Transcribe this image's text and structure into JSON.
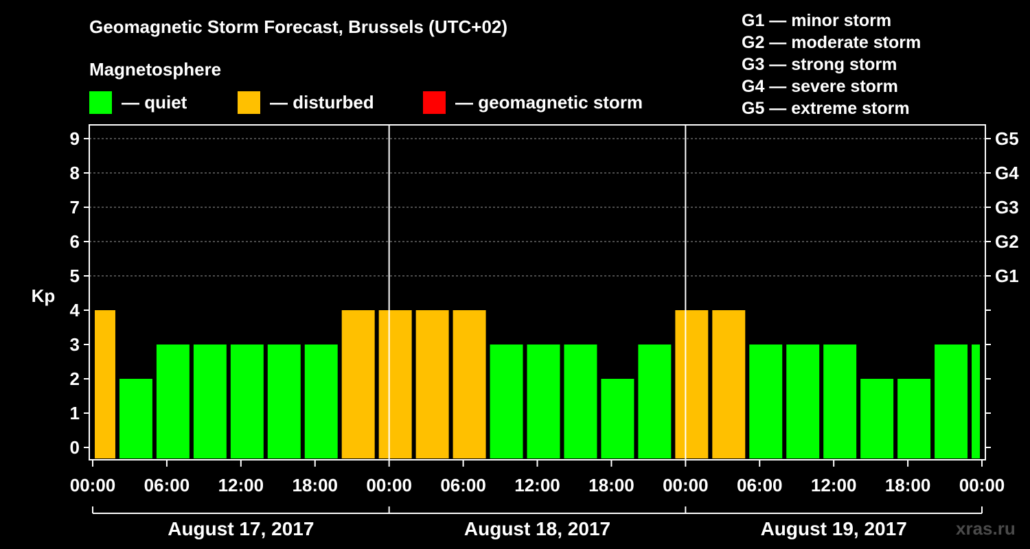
{
  "title": "Geomagnetic Storm Forecast, Brussels (UTC+02)",
  "subtitle": "Magnetosphere",
  "legend": [
    {
      "label": "— quiet",
      "color": "#00ff00",
      "swatch": "green-swatch"
    },
    {
      "label": "— disturbed",
      "color": "#ffc000",
      "swatch": "orange-swatch"
    },
    {
      "label": "— geomagnetic storm",
      "color": "#ff0000",
      "swatch": "red-swatch"
    }
  ],
  "g_scale": [
    "G1 — minor storm",
    "G2 — moderate storm",
    "G3 — strong storm",
    "G4 — severe storm",
    "G5 — extreme storm"
  ],
  "watermark": "xras.ru",
  "colors": {
    "quiet": "#00ff00",
    "disturbed": "#ffc000",
    "storm": "#ff0000"
  },
  "chart_data": {
    "type": "bar",
    "ylabel": "Kp",
    "ylim": [
      0,
      9
    ],
    "yticks": [
      "0",
      "1",
      "2",
      "3",
      "4",
      "5",
      "6",
      "7",
      "8",
      "9"
    ],
    "right_ticks": [
      {
        "value": 5,
        "label": "G1"
      },
      {
        "value": 6,
        "label": "G2"
      },
      {
        "value": 7,
        "label": "G3"
      },
      {
        "value": 8,
        "label": "G4"
      },
      {
        "value": 9,
        "label": "G5"
      }
    ],
    "xlim_hours": [
      0,
      72
    ],
    "xticks": [
      {
        "hour": 0,
        "label": "00:00"
      },
      {
        "hour": 6,
        "label": "06:00"
      },
      {
        "hour": 12,
        "label": "12:00"
      },
      {
        "hour": 18,
        "label": "18:00"
      },
      {
        "hour": 24,
        "label": "00:00"
      },
      {
        "hour": 30,
        "label": "06:00"
      },
      {
        "hour": 36,
        "label": "12:00"
      },
      {
        "hour": 42,
        "label": "18:00"
      },
      {
        "hour": 48,
        "label": "00:00"
      },
      {
        "hour": 54,
        "label": "06:00"
      },
      {
        "hour": 60,
        "label": "12:00"
      },
      {
        "hour": 66,
        "label": "18:00"
      },
      {
        "hour": 72,
        "label": "00:00"
      }
    ],
    "days": [
      {
        "label": "August 17, 2017",
        "start": 0,
        "end": 24
      },
      {
        "label": "August 18, 2017",
        "start": 24,
        "end": 48
      },
      {
        "label": "August 19, 2017",
        "start": 48,
        "end": 72
      }
    ],
    "grid": true,
    "bars": [
      {
        "start": 0,
        "end": 2,
        "kp": 4,
        "level": "disturbed"
      },
      {
        "start": 2,
        "end": 5,
        "kp": 2,
        "level": "quiet"
      },
      {
        "start": 5,
        "end": 8,
        "kp": 3,
        "level": "quiet"
      },
      {
        "start": 8,
        "end": 11,
        "kp": 3,
        "level": "quiet"
      },
      {
        "start": 11,
        "end": 14,
        "kp": 3,
        "level": "quiet"
      },
      {
        "start": 14,
        "end": 17,
        "kp": 3,
        "level": "quiet"
      },
      {
        "start": 17,
        "end": 20,
        "kp": 3,
        "level": "quiet"
      },
      {
        "start": 20,
        "end": 23,
        "kp": 4,
        "level": "disturbed"
      },
      {
        "start": 23,
        "end": 26,
        "kp": 4,
        "level": "disturbed"
      },
      {
        "start": 26,
        "end": 29,
        "kp": 4,
        "level": "disturbed"
      },
      {
        "start": 29,
        "end": 32,
        "kp": 4,
        "level": "disturbed"
      },
      {
        "start": 32,
        "end": 35,
        "kp": 3,
        "level": "quiet"
      },
      {
        "start": 35,
        "end": 38,
        "kp": 3,
        "level": "quiet"
      },
      {
        "start": 38,
        "end": 41,
        "kp": 3,
        "level": "quiet"
      },
      {
        "start": 41,
        "end": 44,
        "kp": 2,
        "level": "quiet"
      },
      {
        "start": 44,
        "end": 47,
        "kp": 3,
        "level": "quiet"
      },
      {
        "start": 47,
        "end": 50,
        "kp": 4,
        "level": "disturbed"
      },
      {
        "start": 50,
        "end": 53,
        "kp": 4,
        "level": "disturbed"
      },
      {
        "start": 53,
        "end": 56,
        "kp": 3,
        "level": "quiet"
      },
      {
        "start": 56,
        "end": 59,
        "kp": 3,
        "level": "quiet"
      },
      {
        "start": 59,
        "end": 62,
        "kp": 3,
        "level": "quiet"
      },
      {
        "start": 62,
        "end": 65,
        "kp": 2,
        "level": "quiet"
      },
      {
        "start": 65,
        "end": 68,
        "kp": 2,
        "level": "quiet"
      },
      {
        "start": 68,
        "end": 71,
        "kp": 3,
        "level": "quiet"
      },
      {
        "start": 71,
        "end": 72,
        "kp": 3,
        "level": "quiet"
      }
    ]
  }
}
